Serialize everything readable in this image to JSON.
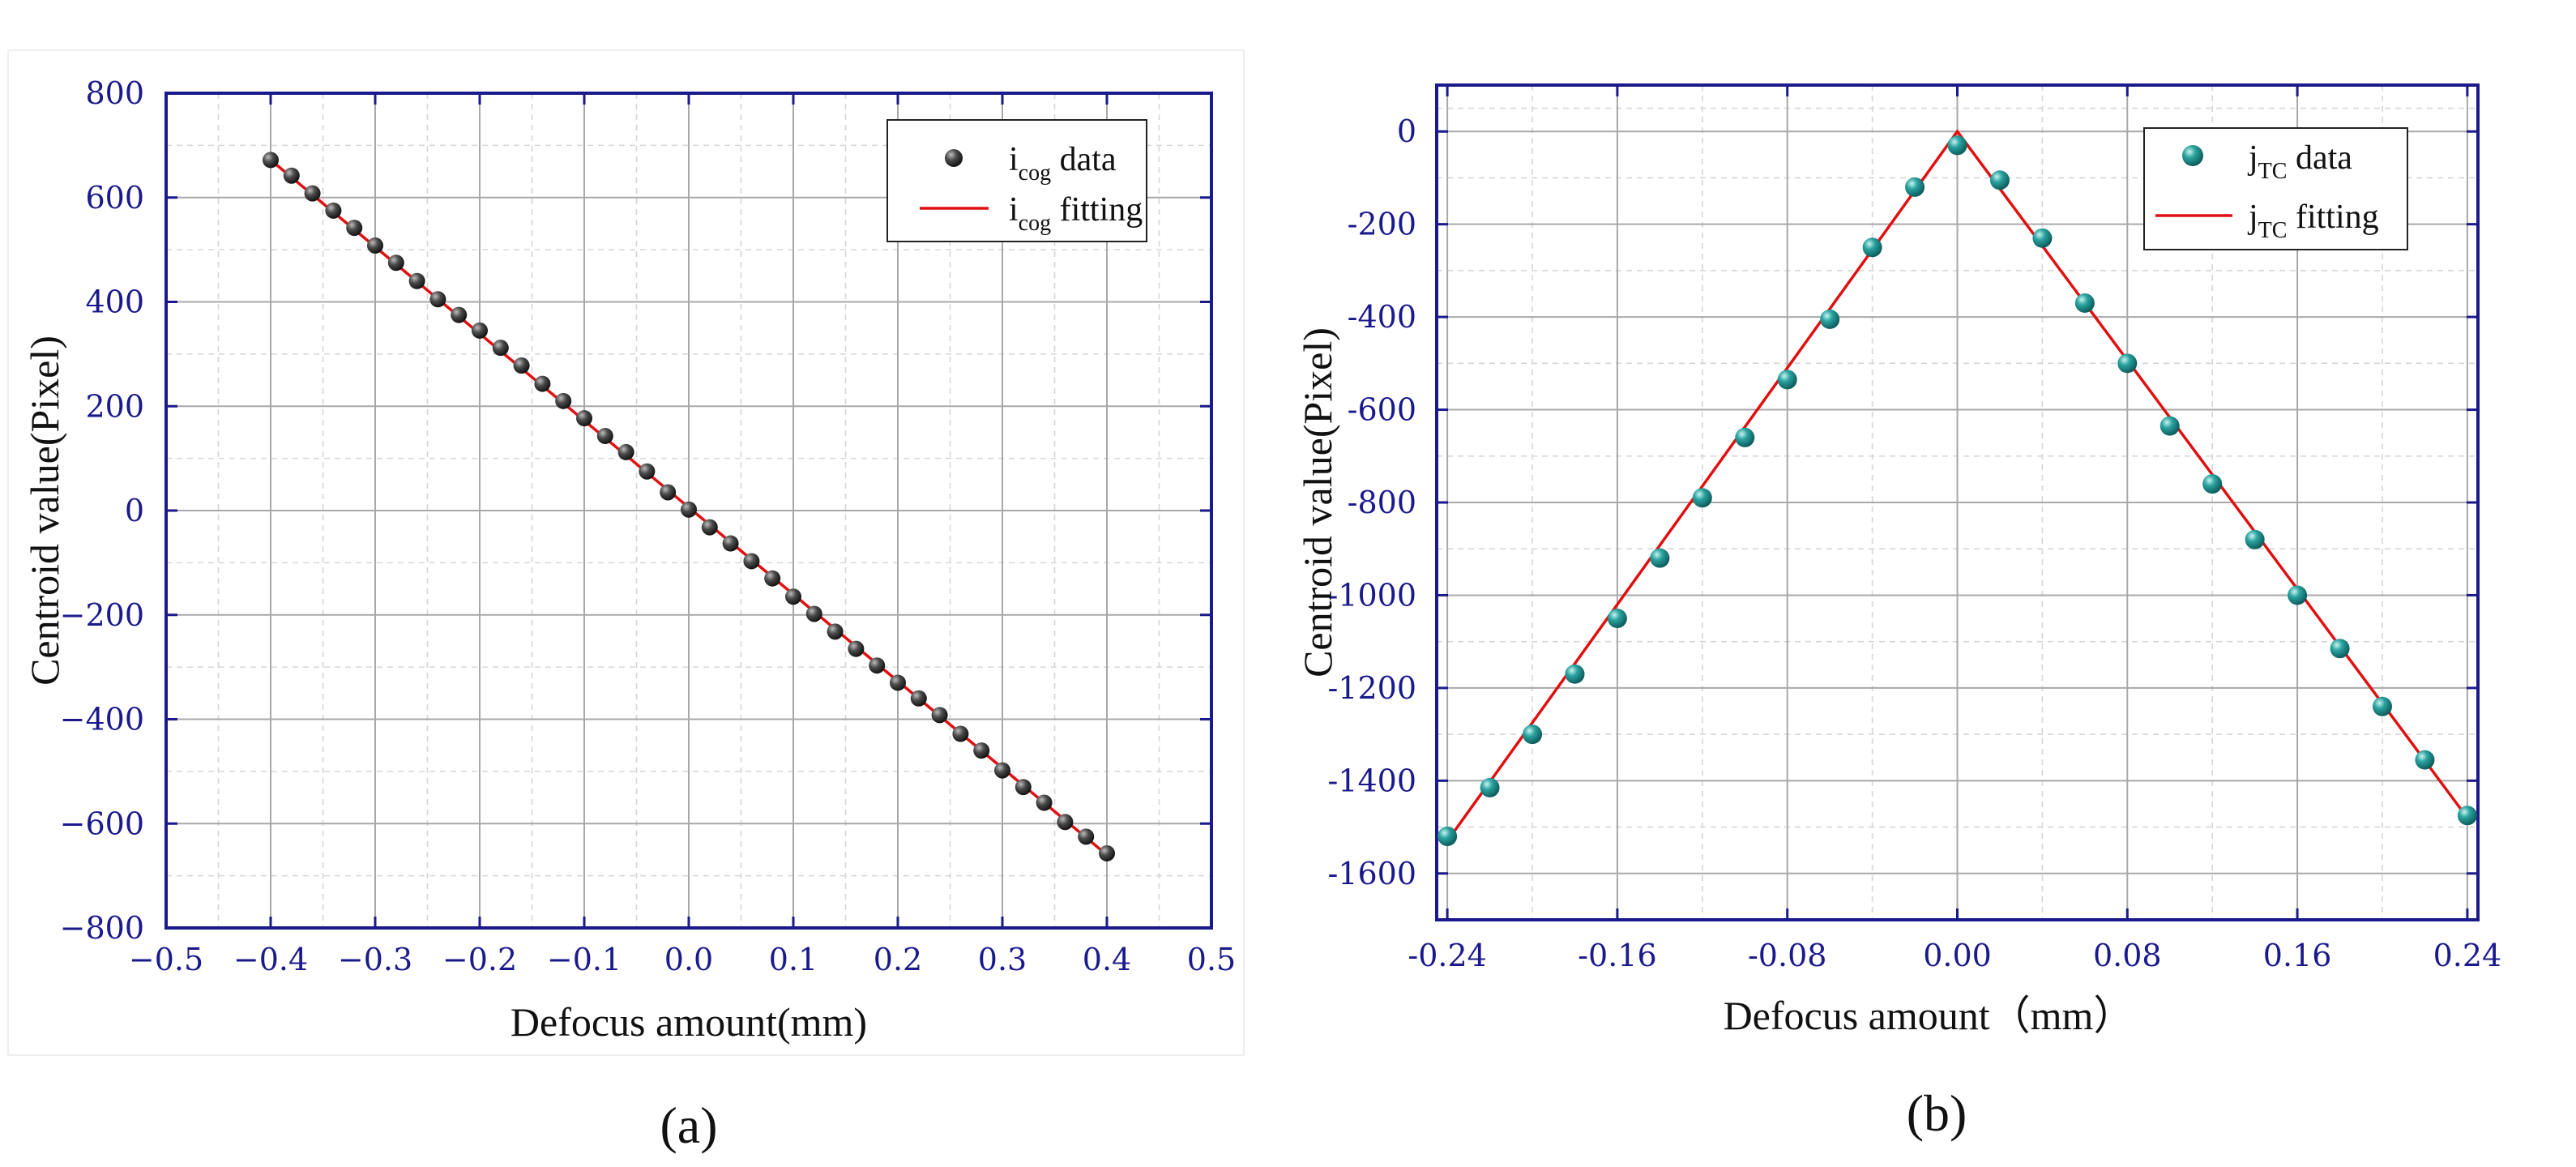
{
  "colors": {
    "axis": "#1a1a8c",
    "fit": "#e01010",
    "a_marker": "#3a3a3a",
    "b_marker": "#1a8a8a"
  },
  "chart_data": [
    {
      "type": "scatter",
      "panel_label": "(a)",
      "title": "",
      "xlabel": "Defocus amount(mm)",
      "ylabel": "Centroid value(Pixel)",
      "xlim": [
        -0.5,
        0.5
      ],
      "ylim": [
        -800,
        800
      ],
      "grid": true,
      "legend_position": "top-right",
      "x_ticks": [
        -0.5,
        -0.4,
        -0.3,
        -0.2,
        -0.1,
        0.0,
        0.1,
        0.2,
        0.3,
        0.4,
        0.5
      ],
      "x_tick_labels": [
        "−0.5",
        "−0.4",
        "−0.3",
        "−0.2",
        "−0.1",
        "0.0",
        "0.1",
        "0.2",
        "0.3",
        "0.4",
        "0.5"
      ],
      "y_ticks": [
        -800,
        -600,
        -400,
        -200,
        0,
        200,
        400,
        600,
        800
      ],
      "y_tick_labels": [
        "−800",
        "−600",
        "−400",
        "−200",
        "0",
        "200",
        "400",
        "600",
        "800"
      ],
      "legend": {
        "data": {
          "main": "i",
          "sub": "cog",
          "rest": " data"
        },
        "fit": {
          "main": "i",
          "sub": "cog",
          "rest": " fitting"
        }
      },
      "series": [
        {
          "name": "icog data",
          "kind": "scatter",
          "x": [
            -0.4,
            -0.38,
            -0.36,
            -0.34,
            -0.32,
            -0.3,
            -0.28,
            -0.26,
            -0.24,
            -0.22,
            -0.2,
            -0.18,
            -0.16,
            -0.14,
            -0.12,
            -0.1,
            -0.08,
            -0.06,
            -0.04,
            -0.02,
            0.0,
            0.02,
            0.04,
            0.06,
            0.08,
            0.1,
            0.12,
            0.14,
            0.16,
            0.18,
            0.2,
            0.22,
            0.24,
            0.26,
            0.28,
            0.3,
            0.32,
            0.34,
            0.36,
            0.38,
            0.4
          ],
          "y": [
            672,
            642,
            608,
            575,
            542,
            508,
            475,
            440,
            405,
            375,
            345,
            312,
            278,
            243,
            210,
            177,
            143,
            112,
            75,
            35,
            2,
            -32,
            -63,
            -97,
            -130,
            -165,
            -198,
            -232,
            -265,
            -297,
            -330,
            -360,
            -392,
            -428,
            -460,
            -498,
            -530,
            -560,
            -597,
            -625,
            -657
          ]
        },
        {
          "name": "icog fitting",
          "kind": "line",
          "x": [
            -0.4,
            0.4
          ],
          "y": [
            672,
            -660
          ]
        }
      ]
    },
    {
      "type": "scatter",
      "panel_label": "(b)",
      "title": "",
      "xlabel": "Defocus amount（mm）",
      "ylabel": "Centroid value(Pixel)",
      "xlim": [
        -0.245,
        0.245
      ],
      "ylim": [
        -1700,
        100
      ],
      "grid": true,
      "legend_position": "top-right",
      "x_ticks": [
        -0.24,
        -0.16,
        -0.08,
        0.0,
        0.08,
        0.16,
        0.24
      ],
      "x_tick_labels": [
        "-0.24",
        "-0.16",
        "-0.08",
        "0.00",
        "0.08",
        "0.16",
        "0.24"
      ],
      "y_ticks": [
        0,
        -200,
        -400,
        -600,
        -800,
        -1000,
        -1200,
        -1400,
        -1600
      ],
      "y_tick_labels": [
        "0",
        "-200",
        "-400",
        "-600",
        "-800",
        "-1000",
        "-1200",
        "-1400",
        "-1600"
      ],
      "legend": {
        "data": {
          "main": "j",
          "sub": "TC",
          "rest": " data"
        },
        "fit": {
          "main": "j",
          "sub": "TC",
          "rest": " fitting"
        }
      },
      "series": [
        {
          "name": "jTC data",
          "kind": "scatter",
          "x": [
            -0.24,
            -0.22,
            -0.2,
            -0.18,
            -0.16,
            -0.14,
            -0.12,
            -0.1,
            -0.08,
            -0.06,
            -0.04,
            -0.02,
            0.0,
            0.02,
            0.04,
            0.06,
            0.08,
            0.1,
            0.12,
            0.14,
            0.16,
            0.18,
            0.2,
            0.22,
            0.24
          ],
          "y": [
            -1520,
            -1415,
            -1300,
            -1170,
            -1050,
            -920,
            -790,
            -660,
            -535,
            -405,
            -250,
            -120,
            -30,
            -105,
            -230,
            -370,
            -500,
            -635,
            -760,
            -880,
            -1000,
            -1115,
            -1240,
            -1355,
            -1475
          ]
        },
        {
          "name": "jTC fitting",
          "kind": "line",
          "x": [
            -0.24,
            0.0,
            0.24
          ],
          "y": [
            -1530,
            0,
            -1480
          ]
        }
      ]
    }
  ]
}
